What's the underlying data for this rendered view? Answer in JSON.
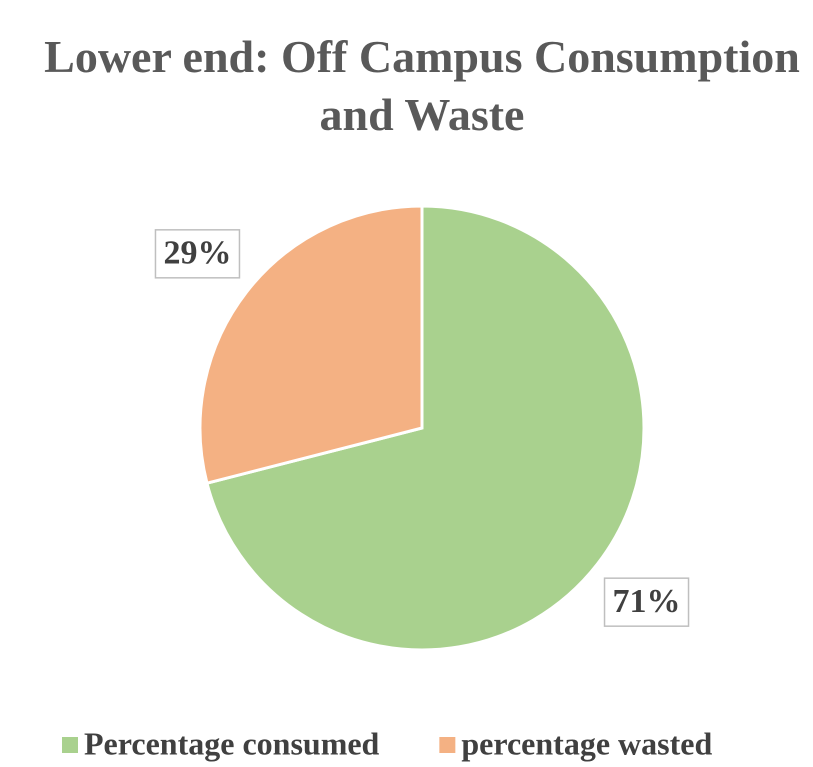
{
  "chart_data": {
    "type": "pie",
    "title": "Lower end: Off Campus Consumption and Waste",
    "categories": [
      "Percentage consumed",
      "percentage wasted"
    ],
    "values": [
      71,
      29
    ],
    "value_labels": [
      "71%",
      "29%"
    ],
    "colors": [
      "#a9d18e",
      "#f4b183"
    ],
    "legend": "bottom"
  }
}
